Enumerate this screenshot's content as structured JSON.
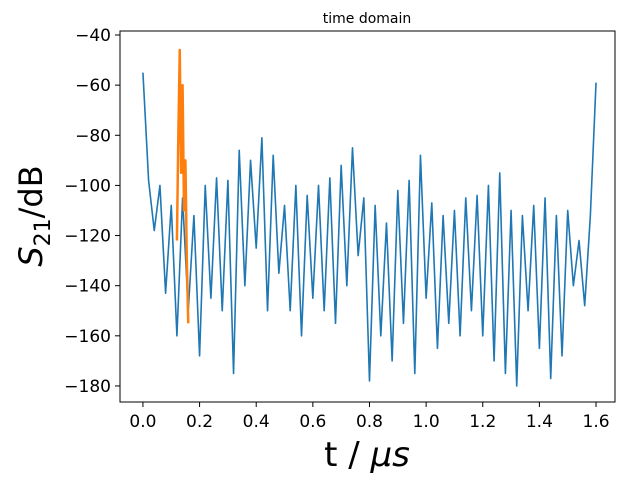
{
  "chart_data": {
    "type": "line",
    "title": "time domain",
    "xlabel": [
      "t / ",
      "μs"
    ],
    "ylabel": [
      "S",
      "21",
      "/dB"
    ],
    "xlim": [
      -0.081,
      1.667
    ],
    "ylim": [
      -186.4,
      -38.4
    ],
    "xticks": [
      {
        "value": 0,
        "label": "0.0"
      },
      {
        "value": 0.2,
        "label": "0.2"
      },
      {
        "value": 0.4,
        "label": "0.4"
      },
      {
        "value": 0.6,
        "label": "0.6"
      },
      {
        "value": 0.8,
        "label": "0.8"
      },
      {
        "value": 1.0,
        "label": "1.0"
      },
      {
        "value": 1.2,
        "label": "1.2"
      },
      {
        "value": 1.4,
        "label": "1.4"
      },
      {
        "value": 1.6,
        "label": "1.6"
      }
    ],
    "yticks": [
      {
        "value": -40,
        "label": "−40"
      },
      {
        "value": -60,
        "label": "−60"
      },
      {
        "value": -80,
        "label": "−80"
      },
      {
        "value": -100,
        "label": "−100"
      },
      {
        "value": -120,
        "label": "−120"
      },
      {
        "value": -140,
        "label": "−140"
      },
      {
        "value": -160,
        "label": "−160"
      },
      {
        "value": -180,
        "label": "−180"
      }
    ],
    "grid": false,
    "series": [
      {
        "color": "#1f77b4",
        "x": [
          0.0,
          0.02,
          0.04,
          0.06,
          0.08,
          0.1,
          0.12,
          0.14,
          0.16,
          0.18,
          0.2,
          0.22,
          0.24,
          0.26,
          0.28,
          0.3,
          0.32,
          0.34,
          0.36,
          0.38,
          0.4,
          0.42,
          0.44,
          0.46,
          0.48,
          0.5,
          0.52,
          0.54,
          0.56,
          0.58,
          0.6,
          0.62,
          0.64,
          0.66,
          0.68,
          0.7,
          0.72,
          0.74,
          0.76,
          0.78,
          0.8,
          0.82,
          0.84,
          0.86,
          0.88,
          0.9,
          0.92,
          0.94,
          0.96,
          0.98,
          1.0,
          1.02,
          1.04,
          1.06,
          1.08,
          1.1,
          1.12,
          1.14,
          1.16,
          1.18,
          1.2,
          1.22,
          1.24,
          1.26,
          1.28,
          1.3,
          1.32,
          1.34,
          1.36,
          1.38,
          1.4,
          1.42,
          1.44,
          1.46,
          1.48,
          1.5,
          1.52,
          1.54,
          1.56,
          1.58,
          1.6
        ],
        "values": [
          -55,
          -98,
          -118,
          -100,
          -143,
          -108,
          -160,
          -105,
          -150,
          -112,
          -168,
          -100,
          -145,
          -97,
          -150,
          -98,
          -175,
          -86,
          -140,
          -90,
          -125,
          -81,
          -150,
          -88,
          -135,
          -108,
          -150,
          -100,
          -160,
          -104,
          -145,
          -100,
          -150,
          -97,
          -155,
          -92,
          -140,
          -85,
          -128,
          -105,
          -178,
          -108,
          -160,
          -115,
          -170,
          -102,
          -155,
          -98,
          -175,
          -88,
          -145,
          -107,
          -165,
          -112,
          -155,
          -110,
          -160,
          -105,
          -150,
          -104,
          -160,
          -100,
          -170,
          -95,
          -175,
          -110,
          -180,
          -112,
          -150,
          -108,
          -165,
          -105,
          -177,
          -112,
          -168,
          -110,
          -140,
          -122,
          -148,
          -112,
          -59
        ]
      },
      {
        "color": "#ff7f0e",
        "x": [
          0.12,
          0.125,
          0.13,
          0.135,
          0.14,
          0.145,
          0.15,
          0.155,
          0.16
        ],
        "values": [
          -122,
          -80,
          -46,
          -95,
          -60,
          -110,
          -90,
          -130,
          -155
        ]
      }
    ]
  }
}
